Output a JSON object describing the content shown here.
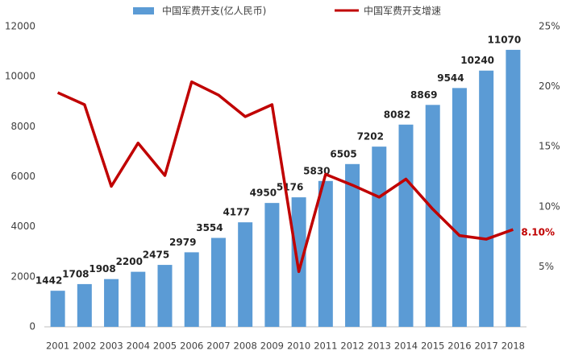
{
  "chart_data": {
    "type": "bar-line",
    "categories": [
      "2001",
      "2002",
      "2003",
      "2004",
      "2005",
      "2006",
      "2007",
      "2008",
      "2009",
      "2010",
      "2011",
      "2012",
      "2013",
      "2014",
      "2015",
      "2016",
      "2017",
      "2018"
    ],
    "series": [
      {
        "name": "中国军费开支(亿人民币)",
        "color": "#5b9bd5",
        "type": "bar",
        "values": [
          1442,
          1708,
          1908,
          2200,
          2475,
          2979,
          3554,
          4177,
          4950,
          5176,
          5830,
          6505,
          7202,
          8082,
          8869,
          9544,
          10240,
          11070
        ]
      },
      {
        "name": "中国军费开支增速",
        "color": "#c00000",
        "type": "line",
        "axis": "y2",
        "values": [
          19.5,
          18.5,
          11.7,
          15.3,
          12.6,
          20.4,
          19.3,
          17.5,
          18.5,
          4.6,
          12.7,
          11.8,
          10.8,
          12.3,
          9.8,
          7.6,
          7.3,
          8.1
        ],
        "value_labels": [
          null,
          null,
          null,
          null,
          null,
          null,
          null,
          null,
          null,
          null,
          null,
          null,
          null,
          null,
          null,
          null,
          null,
          "8.10%"
        ]
      }
    ],
    "ylim": [
      0,
      12000
    ],
    "yticks": [
      0,
      2000,
      4000,
      6000,
      8000,
      10000,
      12000
    ],
    "y2lim": [
      0,
      25
    ],
    "y2ticks": [
      {
        "value": 5,
        "label": "5%"
      },
      {
        "value": 10,
        "label": "10%"
      },
      {
        "value": 15,
        "label": "15%"
      },
      {
        "value": 20,
        "label": "20%"
      },
      {
        "value": 25,
        "label": "25%"
      }
    ]
  }
}
